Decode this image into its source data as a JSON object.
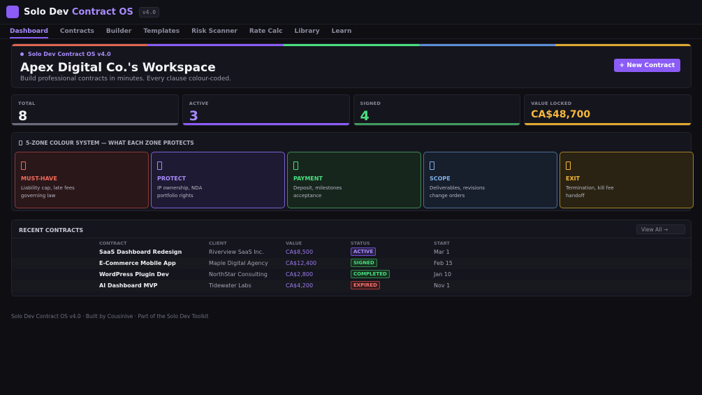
{
  "app": {
    "name": "Solo Dev",
    "name_accent": "Contract OS",
    "version": "v4.0"
  },
  "nav": {
    "items": [
      {
        "label": "Dashboard",
        "active": true
      },
      {
        "label": "Contracts"
      },
      {
        "label": "Builder"
      },
      {
        "label": "Templates"
      },
      {
        "label": "Risk Scanner"
      },
      {
        "label": "Rate Calc"
      },
      {
        "label": "Library"
      },
      {
        "label": "Learn"
      }
    ]
  },
  "hero": {
    "kicker": "Solo Dev Contract OS v4.0",
    "title": "Apex Digital Co.'s Workspace",
    "subtitle": "Build professional contracts in minutes. Every clause colour-coded.",
    "new_button": "+ New Contract"
  },
  "stats": [
    {
      "label": "TOTAL",
      "value": "8",
      "color": "#f0f0f5",
      "bar": "#6b6b7a"
    },
    {
      "label": "ACTIVE",
      "value": "3",
      "color": "#a78bfa",
      "bar": "#8b5cf6"
    },
    {
      "label": "SIGNED",
      "value": "4",
      "color": "#4ade80",
      "bar": "#3f9a5f"
    },
    {
      "label": "VALUE LOCKED",
      "value": "CA$48,700",
      "color": "#f5b73b",
      "bar": "#e0a82e"
    }
  ],
  "zones": {
    "title": "5-ZONE COLOUR SYSTEM — WHAT EACH ZONE PROTECTS",
    "items": [
      {
        "name": "MUST-HAVE",
        "line1": "Liability cap, late fees",
        "line2": "governing law",
        "color": "#f26b5b",
        "bg": "#2a1719",
        "border": "#8a3a36"
      },
      {
        "name": "PROTECT",
        "line1": "IP ownership, NDA",
        "line2": "portfolio rights",
        "color": "#a78bfa",
        "bg": "#1f1a33",
        "border": "#7c5fd6"
      },
      {
        "name": "PAYMENT",
        "line1": "Deposit, milestones",
        "line2": "acceptance",
        "color": "#4ade80",
        "bg": "#17261d",
        "border": "#3f8a58"
      },
      {
        "name": "SCOPE",
        "line1": "Deliverables, revisions",
        "line2": "change orders",
        "color": "#7fb0e8",
        "bg": "#171f2c",
        "border": "#4d6d94"
      },
      {
        "name": "EXIT",
        "line1": "Termination, kill fee",
        "line2": "handoff",
        "color": "#f5b73b",
        "bg": "#2a2313",
        "border": "#a1822a"
      }
    ]
  },
  "recent": {
    "title": "RECENT CONTRACTS",
    "view_all": "View All →",
    "columns": [
      "CONTRACT",
      "CLIENT",
      "VALUE",
      "STATUS",
      "START"
    ],
    "rows": [
      {
        "contract": "SaaS Dashboard Redesign",
        "client": "Riverview SaaS Inc.",
        "value": "CA$8,500",
        "status": "ACTIVE",
        "status_class": "active",
        "start": "Mar 1"
      },
      {
        "contract": "E-Commerce Mobile App",
        "client": "Maple Digital Agency",
        "value": "CA$12,400",
        "status": "SIGNED",
        "status_class": "signed",
        "start": "Feb 15"
      },
      {
        "contract": "WordPress Plugin Dev",
        "client": "NorthStar Consulting",
        "value": "CA$2,800",
        "status": "COMPLETED",
        "status_class": "completed",
        "start": "Jan 10"
      },
      {
        "contract": "AI Dashboard MVP",
        "client": "Tidewater Labs",
        "value": "CA$4,200",
        "status": "EXPIRED",
        "status_class": "expired",
        "start": "Nov 1"
      }
    ]
  },
  "footer": "Solo Dev Contract OS v4.0  ·  Built by CousinIve  ·  Part of the Solo Dev Toolkit",
  "strip_colors": [
    "#e0664f",
    "#8b5cf6",
    "#4ade80",
    "#5b8fd6",
    "#e0a82e"
  ]
}
